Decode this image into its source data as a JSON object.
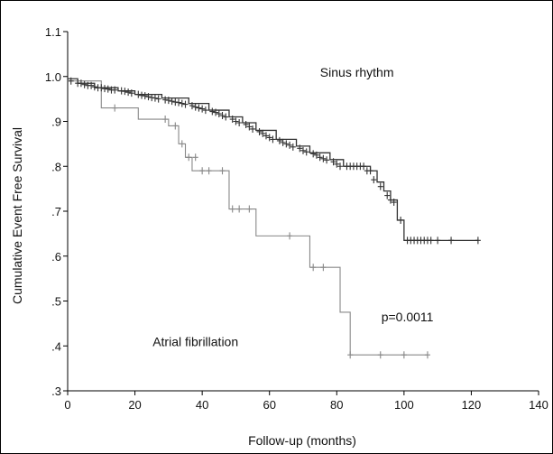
{
  "chart_data": {
    "type": "line",
    "xlabel": "Follow-up (months)",
    "ylabel": "Cumulative Event Free Survival",
    "xlim": [
      0,
      140
    ],
    "ylim": [
      0.3,
      1.1
    ],
    "x_ticks": [
      "0",
      "20",
      "40",
      "60",
      "80",
      "100",
      "120",
      "140"
    ],
    "y_ticks": [
      ".3",
      ".4",
      ".5",
      ".6",
      ".7",
      ".8",
      ".9",
      "1.0",
      "1.1"
    ],
    "grid": false,
    "annotations": [
      {
        "text": "Sinus rhythm",
        "x": 86,
        "y": 1.0
      },
      {
        "text": "Atrial fibrillation",
        "x": 38,
        "y": 0.4
      },
      {
        "text": "p=0.0011",
        "x": 101,
        "y": 0.455
      }
    ],
    "series": [
      {
        "name": "Sinus rhythm",
        "color": "#333333",
        "steps": [
          [
            0,
            0.995
          ],
          [
            3,
            0.985
          ],
          [
            8,
            0.975
          ],
          [
            15,
            0.968
          ],
          [
            20,
            0.96
          ],
          [
            28,
            0.952
          ],
          [
            36,
            0.94
          ],
          [
            42,
            0.925
          ],
          [
            48,
            0.91
          ],
          [
            52,
            0.897
          ],
          [
            56,
            0.88
          ],
          [
            62,
            0.86
          ],
          [
            68,
            0.845
          ],
          [
            72,
            0.83
          ],
          [
            78,
            0.815
          ],
          [
            82,
            0.8
          ],
          [
            90,
            0.79
          ],
          [
            92,
            0.765
          ],
          [
            94,
            0.745
          ],
          [
            96,
            0.725
          ],
          [
            98,
            0.68
          ],
          [
            100,
            0.635
          ],
          [
            122,
            0.635
          ]
        ],
        "censored": [
          [
            1,
            0.99
          ],
          [
            3,
            0.985
          ],
          [
            4,
            0.985
          ],
          [
            5,
            0.982
          ],
          [
            6,
            0.98
          ],
          [
            7,
            0.98
          ],
          [
            8,
            0.977
          ],
          [
            9,
            0.975
          ],
          [
            10,
            0.975
          ],
          [
            11,
            0.973
          ],
          [
            12,
            0.972
          ],
          [
            13,
            0.97
          ],
          [
            14,
            0.97
          ],
          [
            16,
            0.968
          ],
          [
            17,
            0.967
          ],
          [
            18,
            0.965
          ],
          [
            19,
            0.963
          ],
          [
            21,
            0.96
          ],
          [
            22,
            0.958
          ],
          [
            23,
            0.957
          ],
          [
            24,
            0.955
          ],
          [
            25,
            0.953
          ],
          [
            26,
            0.952
          ],
          [
            27,
            0.95
          ],
          [
            29,
            0.948
          ],
          [
            30,
            0.947
          ],
          [
            31,
            0.945
          ],
          [
            32,
            0.943
          ],
          [
            33,
            0.942
          ],
          [
            34,
            0.94
          ],
          [
            35,
            0.938
          ],
          [
            37,
            0.935
          ],
          [
            38,
            0.932
          ],
          [
            39,
            0.93
          ],
          [
            40,
            0.928
          ],
          [
            41,
            0.925
          ],
          [
            43,
            0.922
          ],
          [
            44,
            0.92
          ],
          [
            45,
            0.917
          ],
          [
            46,
            0.913
          ],
          [
            47,
            0.91
          ],
          [
            49,
            0.905
          ],
          [
            50,
            0.9
          ],
          [
            51,
            0.897
          ],
          [
            53,
            0.893
          ],
          [
            54,
            0.888
          ],
          [
            55,
            0.883
          ],
          [
            57,
            0.877
          ],
          [
            58,
            0.873
          ],
          [
            59,
            0.868
          ],
          [
            60,
            0.864
          ],
          [
            61,
            0.86
          ],
          [
            63,
            0.857
          ],
          [
            64,
            0.853
          ],
          [
            65,
            0.85
          ],
          [
            66,
            0.847
          ],
          [
            67,
            0.843
          ],
          [
            69,
            0.84
          ],
          [
            70,
            0.835
          ],
          [
            71,
            0.832
          ],
          [
            73,
            0.828
          ],
          [
            74,
            0.825
          ],
          [
            75,
            0.82
          ],
          [
            76,
            0.817
          ],
          [
            77,
            0.814
          ],
          [
            79,
            0.81
          ],
          [
            80,
            0.805
          ],
          [
            81,
            0.8
          ],
          [
            83,
            0.8
          ],
          [
            84,
            0.8
          ],
          [
            85,
            0.8
          ],
          [
            86,
            0.8
          ],
          [
            87,
            0.8
          ],
          [
            88,
            0.8
          ],
          [
            89,
            0.79
          ],
          [
            90,
            0.79
          ],
          [
            91,
            0.77
          ],
          [
            93,
            0.755
          ],
          [
            95,
            0.735
          ],
          [
            96,
            0.725
          ],
          [
            97,
            0.72
          ],
          [
            99,
            0.68
          ],
          [
            101,
            0.635
          ],
          [
            102,
            0.635
          ],
          [
            103,
            0.635
          ],
          [
            104,
            0.635
          ],
          [
            105,
            0.635
          ],
          [
            106,
            0.635
          ],
          [
            107,
            0.635
          ],
          [
            108,
            0.635
          ],
          [
            110,
            0.635
          ],
          [
            114,
            0.635
          ],
          [
            122,
            0.635
          ]
        ]
      },
      {
        "name": "Atrial fibrillation",
        "color": "#888888",
        "steps": [
          [
            0,
            0.99
          ],
          [
            10,
            0.93
          ],
          [
            21,
            0.905
          ],
          [
            30,
            0.89
          ],
          [
            33,
            0.85
          ],
          [
            35,
            0.82
          ],
          [
            37,
            0.79
          ],
          [
            48,
            0.705
          ],
          [
            56,
            0.645
          ],
          [
            72,
            0.575
          ],
          [
            81,
            0.475
          ],
          [
            84,
            0.38
          ],
          [
            107,
            0.38
          ]
        ],
        "censored": [
          [
            14,
            0.93
          ],
          [
            29,
            0.905
          ],
          [
            32,
            0.89
          ],
          [
            34,
            0.85
          ],
          [
            36,
            0.82
          ],
          [
            38,
            0.82
          ],
          [
            40,
            0.79
          ],
          [
            42,
            0.79
          ],
          [
            46,
            0.79
          ],
          [
            49,
            0.705
          ],
          [
            51,
            0.705
          ],
          [
            54,
            0.705
          ],
          [
            66,
            0.645
          ],
          [
            73,
            0.575
          ],
          [
            76,
            0.575
          ],
          [
            84,
            0.38
          ],
          [
            93,
            0.38
          ],
          [
            100,
            0.38
          ],
          [
            107,
            0.38
          ]
        ]
      }
    ]
  }
}
